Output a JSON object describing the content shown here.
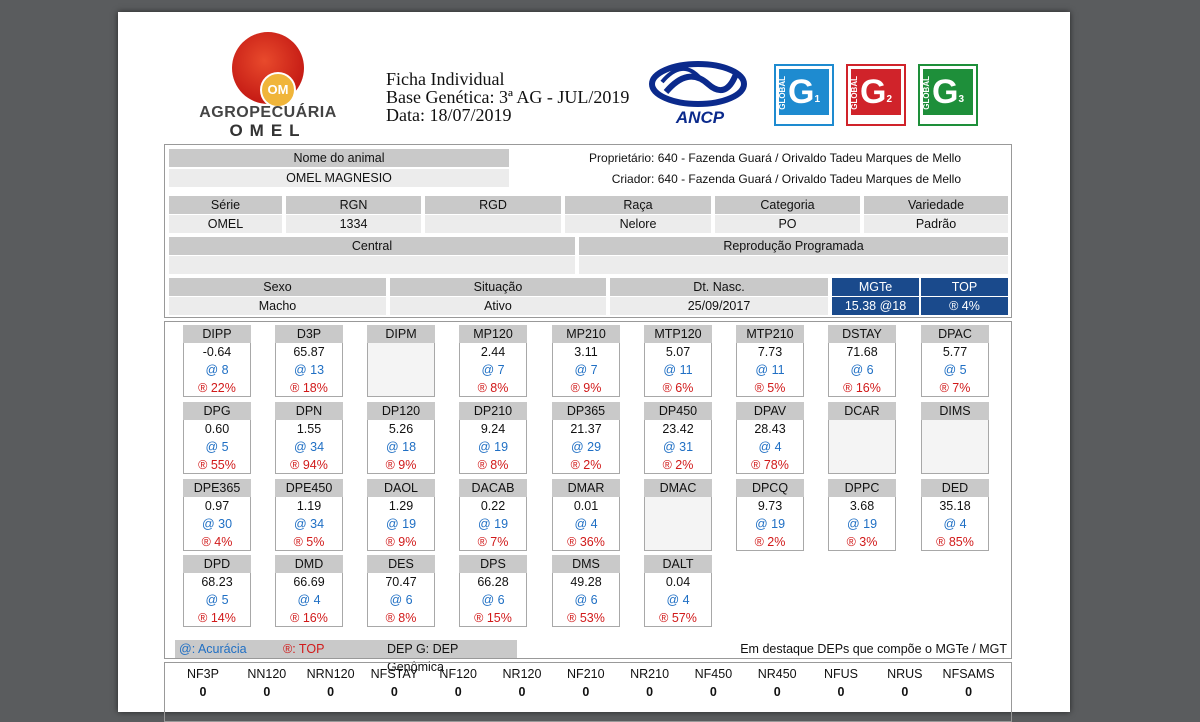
{
  "header": {
    "logo_line1": "AGROPECUÁRIA",
    "logo_line2": "OMEL",
    "logo_mark": "OM",
    "title": "Ficha Individual",
    "base": "Base Genética: 3ª AG - JUL/2019",
    "date": "Data: 18/07/2019",
    "ancp": "ANCP",
    "badges": [
      {
        "label": "GLOBAL",
        "letter": "G",
        "num": "1",
        "color": "#1e8bd0"
      },
      {
        "label": "GLOBAL",
        "letter": "G",
        "num": "2",
        "color": "#d0232a"
      },
      {
        "label": "GLOBAL",
        "letter": "G",
        "num": "3",
        "color": "#1e8f3a"
      }
    ]
  },
  "animal": {
    "name_label": "Nome do animal",
    "name": "OMEL MAGNESIO",
    "owner": "Proprietário: 640 - Fazenda Guará / Orivaldo Tadeu Marques de Mello",
    "breeder": "Criador: 640 - Fazenda Guará / Orivaldo Tadeu Marques de Mello",
    "row2": [
      {
        "label": "Série",
        "value": "OMEL"
      },
      {
        "label": "RGN",
        "value": "1334"
      },
      {
        "label": "RGD",
        "value": ""
      },
      {
        "label": "Raça",
        "value": "Nelore"
      },
      {
        "label": "Categoria",
        "value": "PO"
      },
      {
        "label": "Variedade",
        "value": "Padrão"
      }
    ],
    "central_label": "Central",
    "central_value": "",
    "repro_label": "Reprodução Programada",
    "repro_value": "",
    "sexo_label": "Sexo",
    "sexo": "Macho",
    "situacao_label": "Situação",
    "situacao": "Ativo",
    "nasc_label": "Dt. Nasc.",
    "nasc": "25/09/2017",
    "mgte_label": "MGTe",
    "mgte": "15.38  @18",
    "top_label": "TOP",
    "top": "® 4%"
  },
  "deps": [
    {
      "name": "DIPP",
      "value": "-0.64",
      "acc": "@ 8",
      "top": "® 22%"
    },
    {
      "name": "D3P",
      "value": "65.87",
      "acc": "@ 13",
      "top": "® 18%"
    },
    {
      "name": "DIPM",
      "value": "",
      "acc": "",
      "top": ""
    },
    {
      "name": "MP120",
      "value": "2.44",
      "acc": "@ 7",
      "top": "® 8%"
    },
    {
      "name": "MP210",
      "value": "3.11",
      "acc": "@ 7",
      "top": "® 9%"
    },
    {
      "name": "MTP120",
      "value": "5.07",
      "acc": "@ 11",
      "top": "® 6%"
    },
    {
      "name": "MTP210",
      "value": "7.73",
      "acc": "@ 11",
      "top": "® 5%"
    },
    {
      "name": "DSTAY",
      "value": "71.68",
      "acc": "@ 6",
      "top": "® 16%"
    },
    {
      "name": "DPAC",
      "value": "5.77",
      "acc": "@ 5",
      "top": "® 7%"
    },
    {
      "name": "DPG",
      "value": "0.60",
      "acc": "@ 5",
      "top": "® 55%"
    },
    {
      "name": "DPN",
      "value": "1.55",
      "acc": "@ 34",
      "top": "® 94%"
    },
    {
      "name": "DP120",
      "value": "5.26",
      "acc": "@ 18",
      "top": "® 9%"
    },
    {
      "name": "DP210",
      "value": "9.24",
      "acc": "@ 19",
      "top": "® 8%"
    },
    {
      "name": "DP365",
      "value": "21.37",
      "acc": "@ 29",
      "top": "® 2%"
    },
    {
      "name": "DP450",
      "value": "23.42",
      "acc": "@ 31",
      "top": "® 2%"
    },
    {
      "name": "DPAV",
      "value": "28.43",
      "acc": "@ 4",
      "top": "® 78%"
    },
    {
      "name": "DCAR",
      "value": "",
      "acc": "",
      "top": ""
    },
    {
      "name": "DIMS",
      "value": "",
      "acc": "",
      "top": ""
    },
    {
      "name": "DPE365",
      "value": "0.97",
      "acc": "@ 30",
      "top": "® 4%"
    },
    {
      "name": "DPE450",
      "value": "1.19",
      "acc": "@ 34",
      "top": "® 5%"
    },
    {
      "name": "DAOL",
      "value": "1.29",
      "acc": "@ 19",
      "top": "® 9%"
    },
    {
      "name": "DACAB",
      "value": "0.22",
      "acc": "@ 19",
      "top": "® 7%"
    },
    {
      "name": "DMAR",
      "value": "0.01",
      "acc": "@ 4",
      "top": "® 36%"
    },
    {
      "name": "DMAC",
      "value": "",
      "acc": "",
      "top": ""
    },
    {
      "name": "DPCQ",
      "value": "9.73",
      "acc": "@ 19",
      "top": "® 2%"
    },
    {
      "name": "DPPC",
      "value": "3.68",
      "acc": "@ 19",
      "top": "® 3%"
    },
    {
      "name": "DED",
      "value": "35.18",
      "acc": "@ 4",
      "top": "® 85%"
    },
    {
      "name": "DPD",
      "value": "68.23",
      "acc": "@ 5",
      "top": "® 14%"
    },
    {
      "name": "DMD",
      "value": "66.69",
      "acc": "@ 4",
      "top": "® 16%"
    },
    {
      "name": "DES",
      "value": "70.47",
      "acc": "@ 6",
      "top": "® 8%"
    },
    {
      "name": "DPS",
      "value": "66.28",
      "acc": "@ 6",
      "top": "® 15%"
    },
    {
      "name": "DMS",
      "value": "49.28",
      "acc": "@ 6",
      "top": "® 53%"
    },
    {
      "name": "DALT",
      "value": "0.04",
      "acc": "@ 4",
      "top": "® 57%"
    }
  ],
  "legend": {
    "acc": "@: Acurácia",
    "top": "®: TOP",
    "genomic": "DEP G: DEP Genômica",
    "note": "Em destaque DEPs que compõe o MGTe / MGT"
  },
  "nf": [
    {
      "name": "NF3P",
      "value": "0"
    },
    {
      "name": "NN120",
      "value": "0"
    },
    {
      "name": "NRN120",
      "value": "0"
    },
    {
      "name": "NFSTAY",
      "value": "0"
    },
    {
      "name": "NF120",
      "value": "0"
    },
    {
      "name": "NR120",
      "value": "0"
    },
    {
      "name": "NF210",
      "value": "0"
    },
    {
      "name": "NR210",
      "value": "0"
    },
    {
      "name": "NF450",
      "value": "0"
    },
    {
      "name": "NR450",
      "value": "0"
    },
    {
      "name": "NFUS",
      "value": "0"
    },
    {
      "name": "NRUS",
      "value": "0"
    },
    {
      "name": "NFSAMS",
      "value": "0"
    }
  ],
  "colors": {
    "accuracy": "#1f6fc4",
    "top": "#d11a1a",
    "highlight": "#c9c9c9",
    "mgte": "#1a4a8c"
  }
}
